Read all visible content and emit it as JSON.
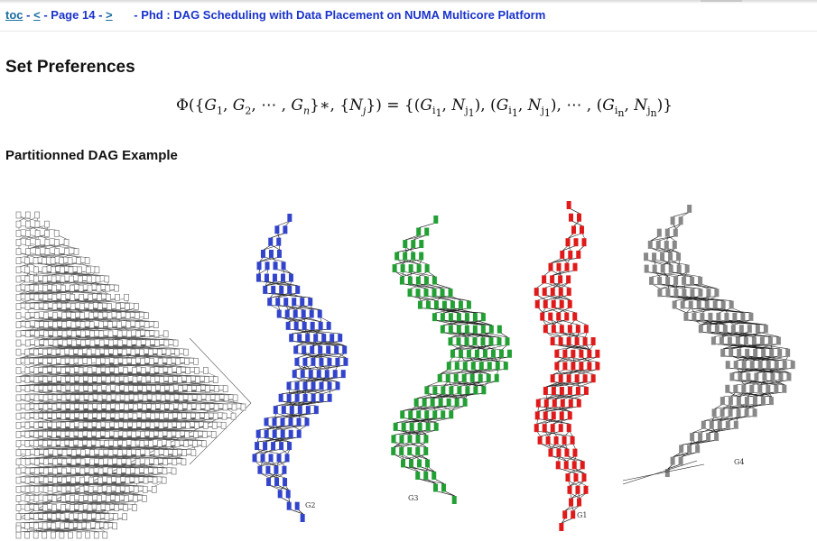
{
  "nav": {
    "toc": "toc",
    "prev": "<",
    "page": "Page 14",
    "next": ">",
    "dash1": "-",
    "dash2": "-",
    "dash3": "-",
    "title": "- Phd : DAG Scheduling with Data Placement on NUMA Multicore Platform"
  },
  "heading": "Set Preferences",
  "formula": {
    "lhs": "Φ({G1, G2, ⋯ , Gn}∗, {Nj})",
    "rhs": "{(Gi1, Nj1), (Gi1, Nj1), ⋯ , (Gin, Njn)}"
  },
  "subheading": "Partitionned DAG Example",
  "figure": {
    "graph_labels": [
      "G2",
      "G3",
      "G1",
      "G4"
    ],
    "colors": {
      "original": "#777777",
      "G2": "#3344cc",
      "G3": "#22a034",
      "G1": "#e01a1a",
      "G4": "#888888"
    }
  }
}
